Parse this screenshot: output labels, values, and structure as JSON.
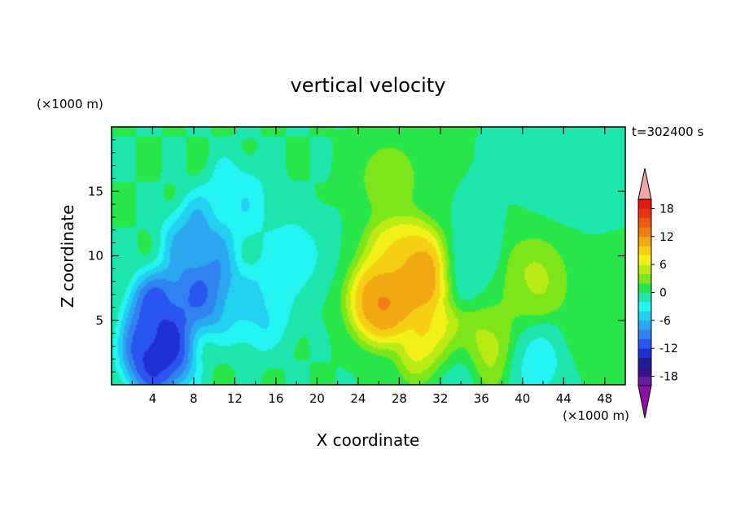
{
  "chart_data": {
    "type": "heatmap",
    "title": "vertical velocity",
    "xlabel": "X coordinate",
    "ylabel": "Z coordinate",
    "x_unit": "(×1000 m)",
    "y_unit": "(×1000 m)",
    "time_label": "t=302400 s",
    "xlim": [
      0,
      50
    ],
    "ylim": [
      0,
      20
    ],
    "x_ticks": [
      4,
      8,
      12,
      16,
      20,
      24,
      28,
      32,
      36,
      40,
      44,
      48
    ],
    "y_ticks": [
      5,
      10,
      15
    ],
    "colorbar": {
      "levels": [
        -20,
        -18,
        -16,
        -14,
        -12,
        -10,
        -8,
        -6,
        -4,
        -2,
        0,
        2,
        4,
        6,
        8,
        10,
        12,
        14,
        16,
        18,
        20
      ],
      "tick_labels": [
        18,
        12,
        6,
        0,
        -6,
        -12,
        -18
      ],
      "colors": [
        "#6a1b9a",
        "#3a0f8c",
        "#1e1e96",
        "#1f2fd6",
        "#2a55ee",
        "#2f82ef",
        "#2ba7f0",
        "#22d0f0",
        "#24f4f2",
        "#1de6ac",
        "#28e64a",
        "#7ce61a",
        "#baeb14",
        "#f2f21a",
        "#f5cf14",
        "#f2a812",
        "#f07e12",
        "#ef5a12",
        "#ea3412",
        "#e11a10"
      ],
      "under_color": "#8e10a8",
      "over_color": "#f2a6a6"
    },
    "features": [
      {
        "x": 5,
        "z": 5.5,
        "value": -13
      },
      {
        "x": 4.5,
        "z": 2.5,
        "value": -15
      },
      {
        "x": 9,
        "z": 7.5,
        "value": -11
      },
      {
        "x": 8.5,
        "z": 11,
        "value": -8
      },
      {
        "x": 14,
        "z": 6,
        "value": -5
      },
      {
        "x": 12,
        "z": 14,
        "value": -4
      },
      {
        "x": 17.5,
        "z": 10,
        "value": -3
      },
      {
        "x": 26.5,
        "z": 6.5,
        "value": 14
      },
      {
        "x": 28,
        "z": 10,
        "value": 9
      },
      {
        "x": 30,
        "z": 8.5,
        "value": 14
      },
      {
        "x": 27,
        "z": 16,
        "value": 3
      },
      {
        "x": 31.5,
        "z": 3,
        "value": 11
      },
      {
        "x": 36.5,
        "z": 3,
        "value": 6
      },
      {
        "x": 41,
        "z": 8,
        "value": 5
      },
      {
        "x": 38,
        "z": 6,
        "value": 2
      },
      {
        "x": 33,
        "z": 1.5,
        "value": -4
      },
      {
        "x": 41,
        "z": 2,
        "value": -3
      },
      {
        "x": 35,
        "z": 9,
        "value": -2
      },
      {
        "x": 44,
        "z": 17,
        "value": -1
      },
      {
        "x": 47,
        "z": 5,
        "value": 2
      }
    ]
  }
}
